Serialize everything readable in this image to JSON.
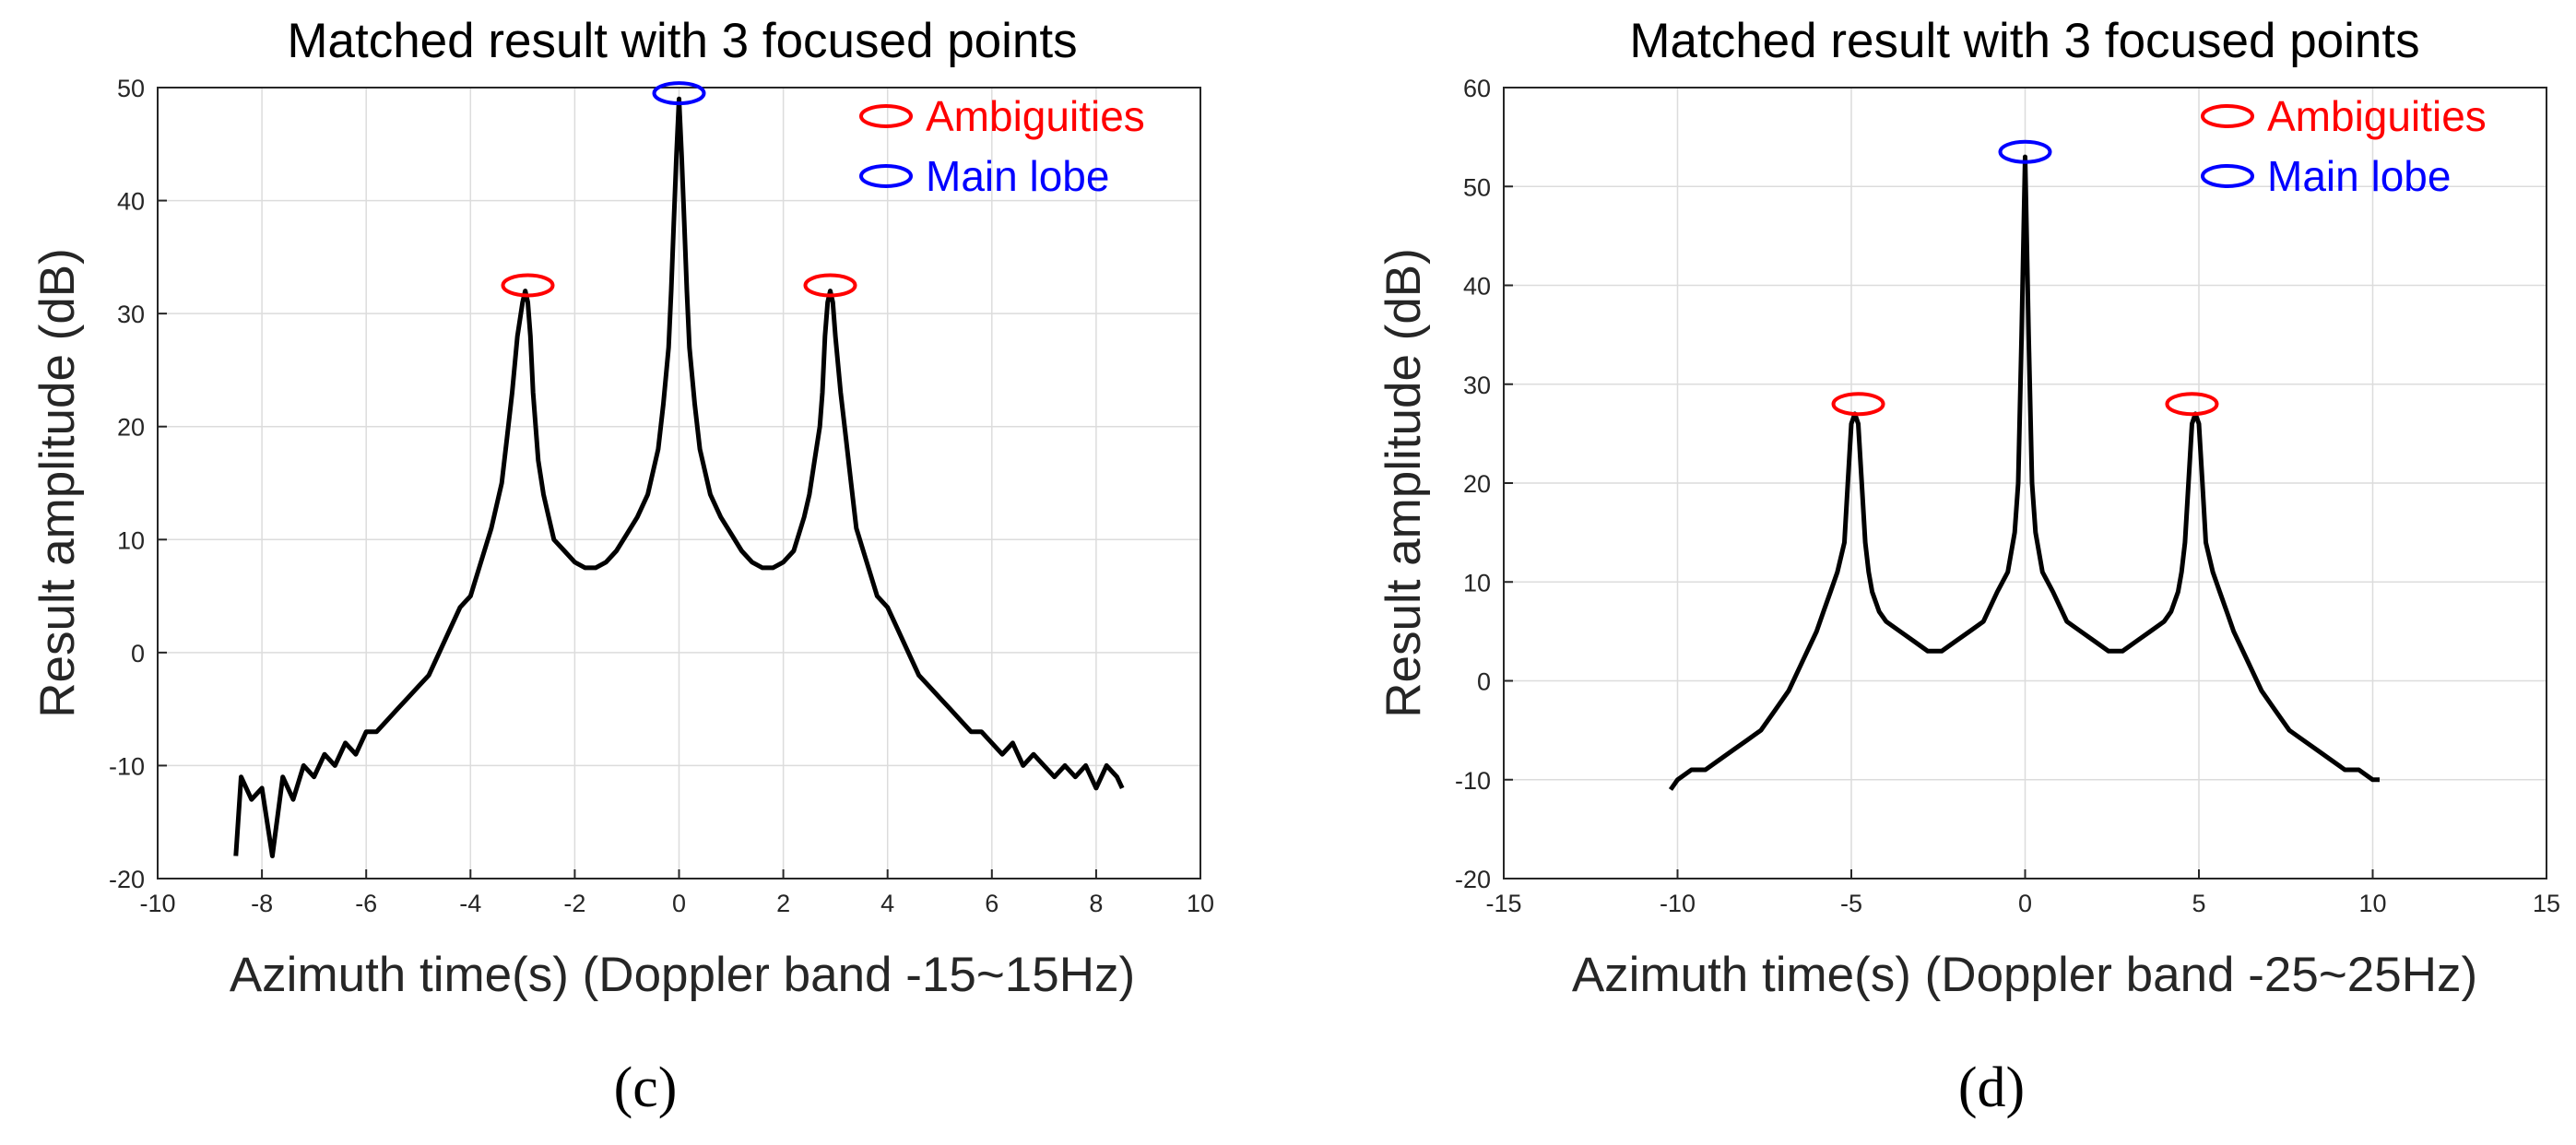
{
  "chart_data": [
    {
      "type": "line",
      "panel_label": "(c)",
      "title": "Matched result with 3 focused points",
      "xlabel": "Azimuth time(s) (Doppler band -15~15Hz)",
      "ylabel": "Result amplitude (dB)",
      "xlim": [
        -10,
        10
      ],
      "ylim": [
        -20,
        50
      ],
      "xticks": [
        -10,
        -8,
        -6,
        -4,
        -2,
        0,
        2,
        4,
        6,
        8,
        10
      ],
      "yticks": [
        -20,
        -10,
        0,
        10,
        20,
        30,
        40,
        50
      ],
      "grid": true,
      "legend": {
        "placement": "top-right",
        "entries": [
          {
            "label": "Ambiguities",
            "color": "#ff0000"
          },
          {
            "label": "Main lobe",
            "color": "#0000ff"
          }
        ]
      },
      "series": [
        {
          "name": "Matched result",
          "color": "#000000",
          "x": [
            -8.5,
            -8.4,
            -8.2,
            -8.0,
            -7.8,
            -7.6,
            -7.4,
            -7.2,
            -7.0,
            -6.8,
            -6.6,
            -6.4,
            -6.2,
            -6.0,
            -5.8,
            -5.6,
            -5.4,
            -5.2,
            -5.0,
            -4.8,
            -4.6,
            -4.4,
            -4.2,
            -4.0,
            -3.8,
            -3.6,
            -3.4,
            -3.3,
            -3.2,
            -3.1,
            -3.0,
            -2.95,
            -2.9,
            -2.85,
            -2.8,
            -2.75,
            -2.7,
            -2.6,
            -2.5,
            -2.4,
            -2.2,
            -2.0,
            -1.8,
            -1.6,
            -1.4,
            -1.2,
            -1.0,
            -0.8,
            -0.6,
            -0.4,
            -0.3,
            -0.2,
            -0.15,
            -0.1,
            -0.05,
            0.0,
            0.05,
            0.1,
            0.15,
            0.2,
            0.3,
            0.4,
            0.6,
            0.8,
            1.0,
            1.2,
            1.4,
            1.6,
            1.8,
            2.0,
            2.2,
            2.4,
            2.5,
            2.6,
            2.7,
            2.75,
            2.8,
            2.85,
            2.9,
            2.95,
            3.0,
            3.1,
            3.2,
            3.3,
            3.4,
            3.6,
            3.8,
            4.0,
            4.2,
            4.4,
            4.6,
            4.8,
            5.0,
            5.2,
            5.4,
            5.6,
            5.8,
            6.0,
            6.2,
            6.4,
            6.6,
            6.8,
            7.0,
            7.2,
            7.4,
            7.6,
            7.8,
            8.0,
            8.2,
            8.4,
            8.5
          ],
          "y": [
            -18,
            -11,
            -13,
            -12,
            -18,
            -11,
            -13,
            -10,
            -11,
            -9,
            -10,
            -8,
            -9,
            -7,
            -7,
            -6,
            -5,
            -4,
            -3,
            -2,
            0,
            2,
            4,
            5,
            8,
            11,
            15,
            19,
            23,
            28,
            31,
            32,
            31,
            28,
            23,
            20,
            17,
            14,
            12,
            10,
            9,
            8,
            7.5,
            7.5,
            8,
            9,
            10.5,
            12,
            14,
            18,
            22,
            27,
            32,
            38,
            44,
            49,
            44,
            38,
            32,
            27,
            22,
            18,
            14,
            12,
            10.5,
            9,
            8,
            7.5,
            7.5,
            8,
            9,
            12,
            14,
            17,
            20,
            23,
            28,
            31,
            32,
            31,
            28,
            23,
            19,
            15,
            11,
            8,
            5,
            4,
            2,
            0,
            -2,
            -3,
            -4,
            -5,
            -6,
            -7,
            -7,
            -8,
            -9,
            -8,
            -10,
            -9,
            -10,
            -11,
            -10,
            -11,
            -10,
            -12,
            -10,
            -11,
            -12
          ]
        }
      ],
      "markers": [
        {
          "type": "Ambiguities",
          "x": -2.9,
          "y": 32.5
        },
        {
          "type": "Main lobe",
          "x": 0.0,
          "y": 49.5
        },
        {
          "type": "Ambiguities",
          "x": 2.9,
          "y": 32.5
        }
      ]
    },
    {
      "type": "line",
      "panel_label": "(d)",
      "title": "Matched result with 3 focused points",
      "xlabel": "Azimuth time(s) (Doppler band -25~25Hz)",
      "ylabel": "Result amplitude (dB)",
      "xlim": [
        -15,
        15
      ],
      "ylim": [
        -20,
        60
      ],
      "xticks": [
        -15,
        -10,
        -5,
        0,
        5,
        10,
        15
      ],
      "yticks": [
        -20,
        -10,
        0,
        10,
        20,
        30,
        40,
        50,
        60
      ],
      "grid": true,
      "legend": {
        "placement": "top-right",
        "entries": [
          {
            "label": "Ambiguities",
            "color": "#ff0000"
          },
          {
            "label": "Main lobe",
            "color": "#0000ff"
          }
        ]
      },
      "series": [
        {
          "name": "Matched result",
          "color": "#000000",
          "x": [
            -10.2,
            -10.0,
            -9.6,
            -9.2,
            -8.8,
            -8.4,
            -8.0,
            -7.6,
            -7.2,
            -6.8,
            -6.4,
            -6.0,
            -5.8,
            -5.6,
            -5.4,
            -5.2,
            -5.1,
            -5.0,
            -4.9,
            -4.8,
            -4.7,
            -4.6,
            -4.5,
            -4.4,
            -4.2,
            -4.0,
            -3.6,
            -3.2,
            -2.8,
            -2.4,
            -2.0,
            -1.6,
            -1.2,
            -0.8,
            -0.5,
            -0.3,
            -0.2,
            -0.1,
            0.0,
            0.1,
            0.2,
            0.3,
            0.5,
            0.8,
            1.2,
            1.6,
            2.0,
            2.4,
            2.8,
            3.2,
            3.6,
            4.0,
            4.2,
            4.4,
            4.5,
            4.6,
            4.7,
            4.8,
            4.9,
            5.0,
            5.1,
            5.2,
            5.4,
            5.6,
            5.8,
            6.0,
            6.4,
            6.8,
            7.2,
            7.6,
            8.0,
            8.4,
            8.8,
            9.2,
            9.6,
            10.0,
            10.2
          ],
          "y": [
            -11,
            -10,
            -9,
            -9,
            -8,
            -7,
            -6,
            -5,
            -3,
            -1,
            2,
            5,
            7,
            9,
            11,
            14,
            20,
            26,
            27,
            26,
            20,
            14,
            11,
            9,
            7,
            6,
            5,
            4,
            3,
            3,
            4,
            5,
            6,
            9,
            11,
            15,
            20,
            35,
            53,
            35,
            20,
            15,
            11,
            9,
            6,
            5,
            4,
            3,
            3,
            4,
            5,
            6,
            7,
            9,
            11,
            14,
            20,
            26,
            27,
            26,
            20,
            14,
            11,
            9,
            7,
            5,
            2,
            -1,
            -3,
            -5,
            -6,
            -7,
            -8,
            -9,
            -9,
            -10,
            -10
          ]
        }
      ],
      "markers": [
        {
          "type": "Ambiguities",
          "x": -4.8,
          "y": 28
        },
        {
          "type": "Main lobe",
          "x": 0.0,
          "y": 53.5
        },
        {
          "type": "Ambiguities",
          "x": 4.8,
          "y": 28
        }
      ]
    }
  ]
}
